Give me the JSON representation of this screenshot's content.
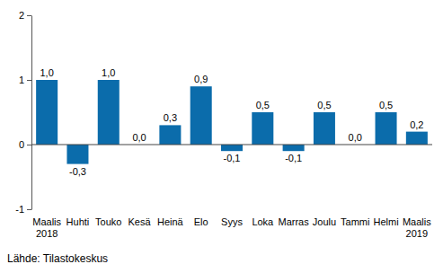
{
  "chart_data": {
    "type": "bar",
    "categories": [
      "Maalis 2018",
      "Huhti",
      "Touko",
      "Kesä",
      "Heinä",
      "Elo",
      "Syys",
      "Loka",
      "Marras",
      "Joulu",
      "Tammi",
      "Helmi",
      "Maalis 2019"
    ],
    "values": [
      1.0,
      -0.3,
      1.0,
      0.0,
      0.3,
      0.9,
      -0.1,
      0.5,
      -0.1,
      0.5,
      0.0,
      0.5,
      0.2
    ],
    "value_labels": [
      "1,0",
      "-0,3",
      "1,0",
      "0,0",
      "0,3",
      "0,9",
      "-0,1",
      "0,5",
      "-0,1",
      "0,5",
      "0,0",
      "0,5",
      "0,2"
    ],
    "color": "#0b6cab",
    "ylim": [
      -1,
      2
    ],
    "yticks": [
      -1,
      0,
      1,
      2
    ],
    "grid": false,
    "data_labels": true,
    "source": "Lähde: Tilastokeskus"
  }
}
